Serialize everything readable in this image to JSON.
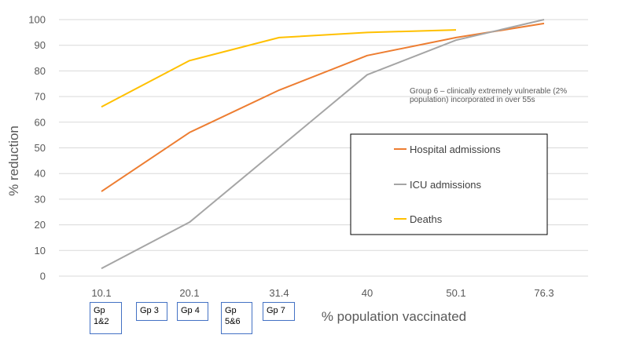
{
  "chart_data": {
    "type": "line",
    "categories": [
      "10.1",
      "20.1",
      "31.4",
      "40",
      "50.1",
      "76.3"
    ],
    "series": [
      {
        "name": "Hospital admissions",
        "color": "#ed7d31",
        "values": [
          33,
          56,
          72.5,
          86,
          93,
          98.5
        ]
      },
      {
        "name": "ICU admissions",
        "color": "#a5a5a5",
        "values": [
          3,
          21,
          50,
          78.5,
          92,
          100
        ]
      },
      {
        "name": "Deaths",
        "color": "#ffc000",
        "values": [
          66,
          84,
          93,
          95,
          96,
          null
        ]
      }
    ],
    "xlabel": "% population vaccinated",
    "ylabel": "% reduction",
    "ylim": [
      0,
      100
    ],
    "yticks": [
      0,
      10,
      20,
      30,
      40,
      50,
      60,
      70,
      80,
      90,
      100
    ],
    "grid": true,
    "legend_position": "right",
    "annotation": {
      "line1": "Group  6 – clinically extremely vulnerable (2%",
      "line2": "population) incorporated in over 55s"
    },
    "group_labels": [
      "Gp\n1&2",
      "Gp 3",
      "Gp 4",
      "Gp\n5&6",
      "Gp 7"
    ]
  }
}
